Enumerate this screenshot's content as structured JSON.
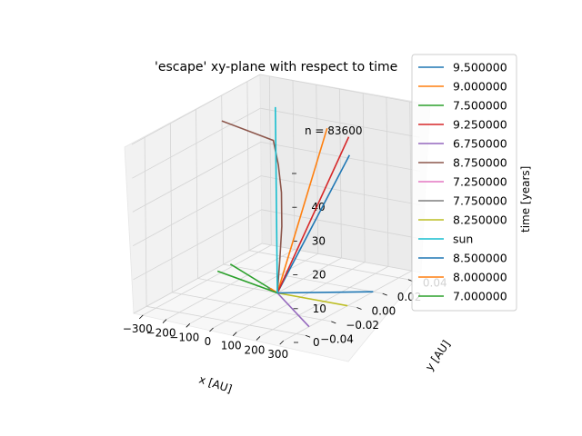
{
  "chart_data": {
    "type": "line",
    "projection": "3d",
    "title": "'escape' xy-plane with respect to time",
    "annotation": "n = 83600",
    "xlabel": "x [AU]",
    "ylabel": "y [AU]",
    "zlabel": "time [years]",
    "xlim": [
      -340,
      340
    ],
    "ylim": [
      -0.05,
      0.05
    ],
    "zlim": [
      0,
      50
    ],
    "x_ticks": [
      -300,
      -200,
      -100,
      0,
      100,
      200,
      300
    ],
    "y_ticks": [
      -0.04,
      -0.02,
      0.0,
      0.02,
      0.04
    ],
    "y_tick_labels": [
      "−0.04",
      "−0.02",
      "0.00",
      "0.02",
      "0.04"
    ],
    "z_ticks": [
      0,
      10,
      20,
      30,
      40,
      50
    ],
    "z_tick_labels": [
      "0",
      "10",
      "20",
      "30",
      "40",
      ""
    ],
    "x_tick_labels": [
      "−300",
      "−200",
      "−100",
      "0",
      "100",
      "200",
      "300"
    ],
    "grid": true,
    "legend_position": "right",
    "series": [
      {
        "name": "9.500000",
        "color": "#1f77b4",
        "points": [
          [
            0,
            0,
            0
          ],
          [
            260,
            0.01,
            42
          ]
        ]
      },
      {
        "name": "9.000000",
        "color": "#ff7f0e",
        "points": [
          [
            0,
            0,
            0
          ],
          [
            110,
            0.02,
            46
          ]
        ]
      },
      {
        "name": "7.500000",
        "color": "#2ca02c",
        "points": [
          [
            0,
            0,
            0
          ],
          [
            -200,
            0.0,
            6
          ]
        ]
      },
      {
        "name": "9.250000",
        "color": "#d62728",
        "points": [
          [
            0,
            0,
            0
          ],
          [
            230,
            0.015,
            46
          ]
        ]
      },
      {
        "name": "6.750000",
        "color": "#9467bd",
        "points": [
          [
            0,
            0,
            0
          ],
          [
            300,
            -0.03,
            0
          ]
        ]
      },
      {
        "name": "8.750000",
        "color": "#8c564b",
        "points": [
          [
            0,
            0,
            0
          ],
          [
            12,
            0,
            10
          ],
          [
            22,
            0,
            20
          ],
          [
            22,
            0,
            30
          ],
          [
            10,
            0,
            38
          ],
          [
            -10,
            0,
            45
          ],
          [
            -230,
            0,
            48
          ]
        ]
      },
      {
        "name": "7.250000",
        "color": "#e377c2",
        "points": [
          [
            0,
            0,
            0
          ],
          [
            5,
            0,
            0.5
          ]
        ]
      },
      {
        "name": "7.750000",
        "color": "#7f7f7f",
        "points": [
          [
            0,
            0,
            0
          ],
          [
            -40,
            0,
            1
          ]
        ]
      },
      {
        "name": "8.250000",
        "color": "#bcbd22",
        "points": [
          [
            0,
            0,
            0
          ],
          [
            300,
            0.0,
            0
          ]
        ]
      },
      {
        "name": "sun",
        "color": "#17becf",
        "points": [
          [
            0,
            0,
            0
          ],
          [
            0,
            0,
            55
          ]
        ]
      },
      {
        "name": "8.500000",
        "color": "#1f77b4",
        "points": [
          [
            0,
            0,
            0
          ],
          [
            300,
            0.02,
            0
          ]
        ]
      },
      {
        "name": "8.000000",
        "color": "#ff7f0e",
        "points": [
          [
            0,
            0,
            0
          ],
          [
            -30,
            0,
            1
          ]
        ]
      },
      {
        "name": "7.000000",
        "color": "#2ca02c",
        "points": [
          [
            0,
            0,
            0
          ],
          [
            -200,
            -0.01,
            6
          ]
        ]
      }
    ]
  }
}
